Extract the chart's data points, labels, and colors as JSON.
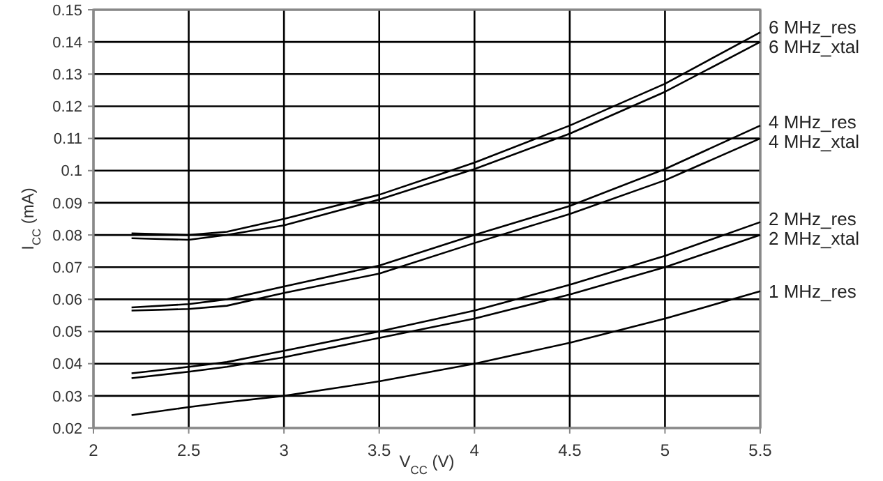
{
  "chart_data": {
    "type": "line",
    "xlabel": "V$_{CC}$ (V)",
    "ylabel": "I$_{CC}$ (mA)",
    "xlim": [
      2,
      5.5
    ],
    "ylim": [
      0.02,
      0.15
    ],
    "xticks": [
      2,
      2.5,
      3,
      3.5,
      4,
      4.5,
      5,
      5.5
    ],
    "yticks": [
      0.02,
      0.03,
      0.04,
      0.05,
      0.06,
      0.07,
      0.08,
      0.09,
      0.1,
      0.11,
      0.12,
      0.13,
      0.14,
      0.15
    ],
    "grid": true,
    "line_style": "solid",
    "x": [
      2.2,
      2.5,
      2.7,
      3,
      3.5,
      4,
      4.5,
      5,
      5.5
    ],
    "series": [
      {
        "name": "6 MHz_res",
        "color": "#000000",
        "values": [
          0.0805,
          0.08,
          0.081,
          0.085,
          0.0925,
          0.1025,
          0.114,
          0.127,
          0.143
        ]
      },
      {
        "name": "6 MHz_xtal",
        "color": "#000000",
        "values": [
          0.079,
          0.0785,
          0.08,
          0.083,
          0.091,
          0.1005,
          0.1115,
          0.1245,
          0.14
        ]
      },
      {
        "name": "4 MHz_res",
        "color": "#000000",
        "values": [
          0.0575,
          0.0585,
          0.06,
          0.064,
          0.0705,
          0.08,
          0.089,
          0.1005,
          0.114
        ]
      },
      {
        "name": "4 MHz_xtal",
        "color": "#000000",
        "values": [
          0.0565,
          0.057,
          0.058,
          0.062,
          0.068,
          0.0775,
          0.0865,
          0.097,
          0.11
        ]
      },
      {
        "name": "2 MHz_res",
        "color": "#000000",
        "values": [
          0.037,
          0.039,
          0.0405,
          0.044,
          0.05,
          0.0565,
          0.0645,
          0.0735,
          0.084
        ]
      },
      {
        "name": "2 MHz_xtal",
        "color": "#000000",
        "values": [
          0.0355,
          0.0375,
          0.039,
          0.042,
          0.048,
          0.054,
          0.0615,
          0.07,
          0.08
        ]
      },
      {
        "name": "1 MHz_res",
        "color": "#000000",
        "values": [
          0.024,
          0.0265,
          0.028,
          0.03,
          0.0345,
          0.04,
          0.0465,
          0.054,
          0.0625
        ]
      }
    ]
  }
}
